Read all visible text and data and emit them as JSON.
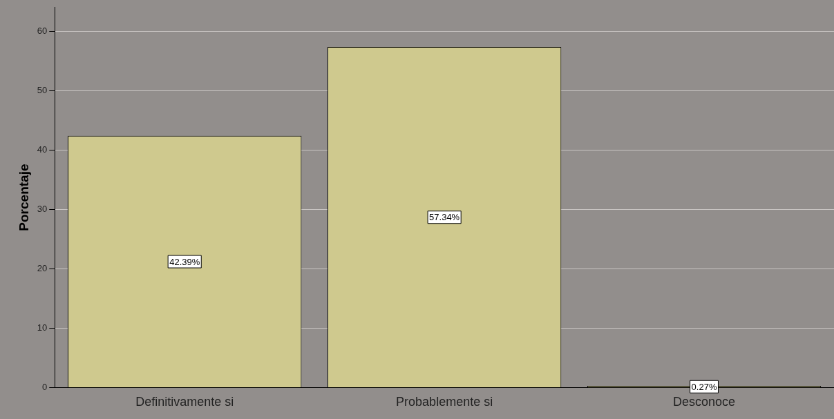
{
  "chart_data": {
    "type": "bar",
    "ylabel": "Porcentaje",
    "categories": [
      "Definitivamente si",
      "Probablemente si",
      "Desconoce"
    ],
    "values": [
      42.39,
      57.34,
      0.27
    ],
    "value_labels": [
      "42.39%",
      "57.34%",
      "0.27%"
    ],
    "color": "#cfc98e",
    "ylim": [
      0,
      64
    ],
    "yticks": [
      0,
      10,
      20,
      30,
      40,
      50,
      60
    ],
    "grid": "y",
    "legend": false
  }
}
